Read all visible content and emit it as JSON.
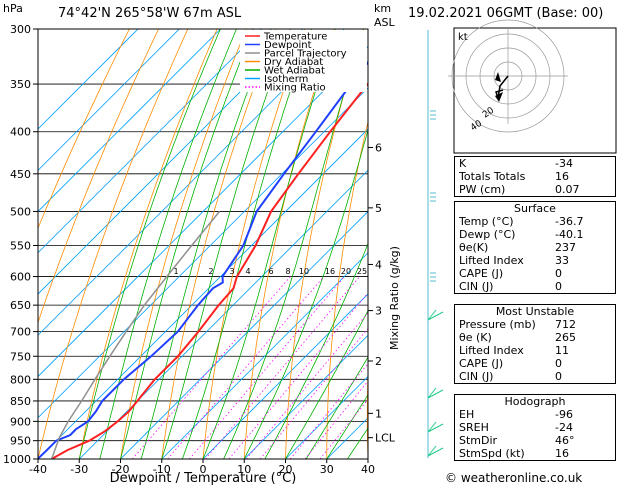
{
  "header": {
    "pressure_unit": "hPa",
    "location": "74°42'N 265°58'W 67m ASL",
    "km_unit": "km",
    "asl": "ASL",
    "datetime": "19.02.2021 06GMT (Base: 00)"
  },
  "legend": [
    {
      "label": "Temperature",
      "color": "#ff2020",
      "style": "solid"
    },
    {
      "label": "Dewpoint",
      "color": "#2040ff",
      "style": "solid"
    },
    {
      "label": "Parcel Trajectory",
      "color": "#909090",
      "style": "solid"
    },
    {
      "label": "Dry Adiabat",
      "color": "#ff8c00",
      "style": "solid"
    },
    {
      "label": "Wet Adiabat",
      "color": "#00b000",
      "style": "solid"
    },
    {
      "label": "Isotherm",
      "color": "#00a0ff",
      "style": "solid"
    },
    {
      "label": "Mixing Ratio",
      "color": "#ff00ff",
      "style": "dotted"
    }
  ],
  "chart_data": {
    "type": "line",
    "xlabel": "Dewpoint / Temperature (°C)",
    "ylabel": "hPa",
    "right_ylabel": "Mixing Ratio (g/kg)",
    "xlim": [
      -40,
      40
    ],
    "ylim": [
      1000,
      300
    ],
    "x_ticks": [
      -40,
      -30,
      -20,
      -10,
      0,
      10,
      20,
      30,
      40
    ],
    "pressure_ticks": [
      300,
      350,
      400,
      450,
      500,
      550,
      600,
      650,
      700,
      750,
      800,
      850,
      900,
      950,
      1000
    ],
    "km_ticks": [
      {
        "label": "6",
        "p": 418
      },
      {
        "label": "5",
        "p": 495
      },
      {
        "label": "4",
        "p": 580
      },
      {
        "label": "3",
        "p": 660
      },
      {
        "label": "2",
        "p": 760
      },
      {
        "label": "1",
        "p": 880
      },
      {
        "label": "LCL",
        "p": 942
      }
    ],
    "mixing_ratio_labels": [
      "1",
      "2",
      "3",
      "4",
      "6",
      "8",
      "10",
      "16",
      "20",
      "25"
    ],
    "mixing_ratio_values": [
      1,
      2,
      3,
      4,
      6,
      8,
      10,
      16,
      20,
      25
    ],
    "series": [
      {
        "name": "Temperature",
        "points": [
          [
            1000,
            -36.7
          ],
          [
            975,
            -35
          ],
          [
            950,
            -32
          ],
          [
            925,
            -30.5
          ],
          [
            900,
            -29.8
          ],
          [
            875,
            -29.5
          ],
          [
            850,
            -30
          ],
          [
            800,
            -31
          ],
          [
            750,
            -31
          ],
          [
            700,
            -32
          ],
          [
            650,
            -33.5
          ],
          [
            620,
            -34
          ],
          [
            600,
            -36
          ],
          [
            550,
            -39
          ],
          [
            500,
            -43.5
          ],
          [
            450,
            -46
          ],
          [
            400,
            -48.5
          ],
          [
            350,
            -51
          ],
          [
            300,
            -53
          ]
        ]
      },
      {
        "name": "Dewpoint",
        "points": [
          [
            1000,
            -40.1
          ],
          [
            975,
            -40
          ],
          [
            950,
            -40
          ],
          [
            935,
            -38
          ],
          [
            920,
            -38
          ],
          [
            900,
            -37
          ],
          [
            875,
            -37.5
          ],
          [
            850,
            -38.5
          ],
          [
            800,
            -38.5
          ],
          [
            750,
            -37.5
          ],
          [
            700,
            -37
          ],
          [
            650,
            -38.5
          ],
          [
            620,
            -39
          ],
          [
            610,
            -38
          ],
          [
            600,
            -39.5
          ],
          [
            550,
            -42
          ],
          [
            500,
            -47
          ],
          [
            450,
            -49.5
          ],
          [
            400,
            -52
          ],
          [
            350,
            -55
          ],
          [
            300,
            -58
          ]
        ]
      },
      {
        "name": "Parcel Trajectory",
        "points": [
          [
            1000,
            -36.7
          ],
          [
            942,
            -40
          ],
          [
            900,
            -41.8
          ],
          [
            850,
            -43.5
          ],
          [
            800,
            -45.5
          ],
          [
            750,
            -47.5
          ],
          [
            700,
            -49.5
          ],
          [
            650,
            -51.5
          ],
          [
            600,
            -53
          ],
          [
            550,
            -54.5
          ],
          [
            500,
            -56
          ]
        ]
      }
    ]
  },
  "hodograph": {
    "label": "kt",
    "ring_labels": [
      "40",
      "20"
    ]
  },
  "indices": {
    "top": [
      {
        "label": "K",
        "value": "-34"
      },
      {
        "label": "Totals Totals",
        "value": "16"
      },
      {
        "label": "PW (cm)",
        "value": "0.07"
      }
    ],
    "surface": {
      "title": "Surface",
      "rows": [
        {
          "label": "Temp (°C)",
          "value": "-36.7"
        },
        {
          "label": "Dewp (°C)",
          "value": "-40.1"
        },
        {
          "label": "θe(K)",
          "value": "237"
        },
        {
          "label": "Lifted Index",
          "value": "33"
        },
        {
          "label": "CAPE (J)",
          "value": "0"
        },
        {
          "label": "CIN (J)",
          "value": "0"
        }
      ]
    },
    "unstable": {
      "title": "Most Unstable",
      "rows": [
        {
          "label": "Pressure (mb)",
          "value": "712"
        },
        {
          "label": "θe (K)",
          "value": "265"
        },
        {
          "label": "Lifted Index",
          "value": "11"
        },
        {
          "label": "CAPE (J)",
          "value": "0"
        },
        {
          "label": "CIN (J)",
          "value": "0"
        }
      ]
    },
    "hodograph": {
      "title": "Hodograph",
      "rows": [
        {
          "label": "EH",
          "value": "-96"
        },
        {
          "label": "SREH",
          "value": "-24"
        },
        {
          "label": "StmDir",
          "value": "46°"
        },
        {
          "label": "StmSpd (kt)",
          "value": "16"
        }
      ]
    }
  },
  "credit": "© weatheronline.co.uk"
}
